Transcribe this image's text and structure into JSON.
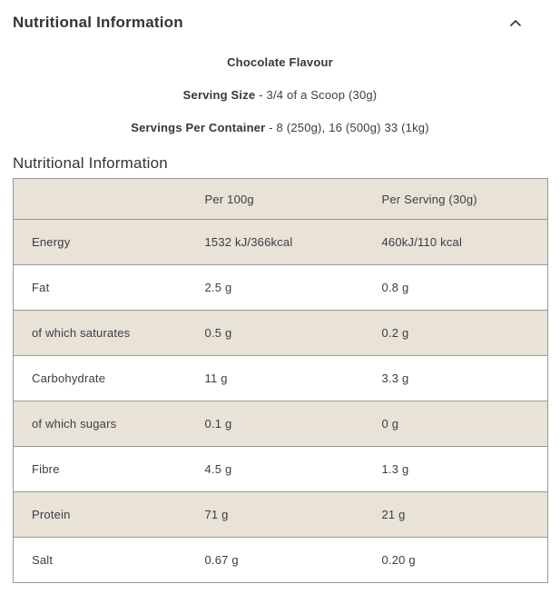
{
  "accordion": {
    "title": "Nutritional Information",
    "chevron_icon": "chevron-up"
  },
  "intro": {
    "flavour": "Chocolate Flavour",
    "serving_size_label": "Serving Size",
    "serving_size_value": " - 3/4 of a Scoop (30g)",
    "servings_per_container_label": "Servings Per Container",
    "servings_per_container_value": " - 8 (250g), 16 (500g) 33 (1kg)"
  },
  "section_title": "Nutritional Information",
  "table": {
    "headers": [
      "",
      "Per 100g",
      "Per Serving (30g)"
    ],
    "rows": [
      {
        "label": "Energy",
        "per_100g": "1532 kJ/366kcal",
        "per_serving": "460kJ/110 kcal"
      },
      {
        "label": "Fat",
        "per_100g": "2.5 g",
        "per_serving": "0.8 g"
      },
      {
        "label": "of which saturates",
        "per_100g": "0.5 g",
        "per_serving": "0.2 g"
      },
      {
        "label": "Carbohydrate",
        "per_100g": "11 g",
        "per_serving": "3.3 g"
      },
      {
        "label": "of which sugars",
        "per_100g": "0.1 g",
        "per_serving": "0 g"
      },
      {
        "label": "Fibre",
        "per_100g": "4.5 g",
        "per_serving": "1.3 g"
      },
      {
        "label": "Protein",
        "per_100g": "71 g",
        "per_serving": "21 g"
      },
      {
        "label": "Salt",
        "per_100g": "0.67 g",
        "per_serving": "0.20 g"
      }
    ]
  },
  "colors": {
    "stripe_beige": "#e8e2d7",
    "table_border": "#999999",
    "heading_text": "#33333a",
    "body_text": "#3d3d42",
    "chevron": "#333333"
  }
}
